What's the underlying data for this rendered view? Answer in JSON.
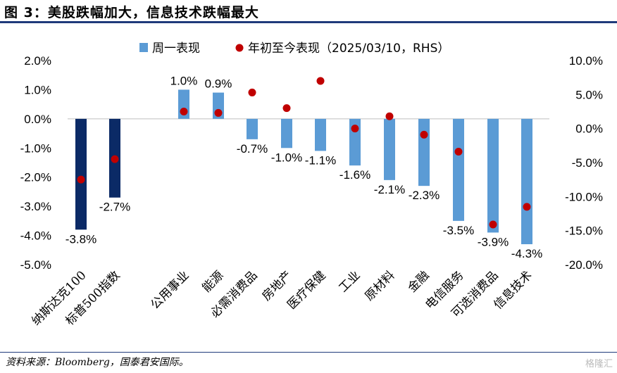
{
  "header": {
    "title": "图 3：美股跌幅加大，信息技术跌幅最大"
  },
  "footer": {
    "source": "资料来源：Bloomberg，国泰君安国际。",
    "watermark": "格隆汇"
  },
  "chart_data": {
    "type": "bar",
    "categories": [
      "纳斯达克100",
      "标普500指数",
      "公用事业",
      "能源",
      "必需消费品",
      "房地产",
      "医疗保健",
      "工业",
      "原材料",
      "金融",
      "电信服务",
      "可选消费品",
      "信息技术"
    ],
    "series": [
      {
        "name": "周一表现",
        "type": "bar",
        "axis": "left",
        "values": [
          -3.8,
          -2.7,
          1.0,
          0.9,
          -0.7,
          -1.0,
          -1.1,
          -1.6,
          -2.1,
          -2.3,
          -3.5,
          -3.9,
          -4.3
        ],
        "labels": [
          "-3.8%",
          "-2.7%",
          "1.0%",
          "0.9%",
          "-0.7%",
          "-1.0%",
          "-1.1%",
          "-1.6%",
          "-2.1%",
          "-2.3%",
          "-3.5%",
          "-3.9%",
          "-4.3%"
        ],
        "colors": [
          "#0b2a66",
          "#0b2a66",
          "#5b9bd5",
          "#5b9bd5",
          "#5b9bd5",
          "#5b9bd5",
          "#5b9bd5",
          "#5b9bd5",
          "#5b9bd5",
          "#5b9bd5",
          "#5b9bd5",
          "#5b9bd5",
          "#5b9bd5"
        ]
      },
      {
        "name": "年初至今表现（2025/03/10，RHS）",
        "type": "scatter",
        "axis": "right",
        "values": [
          -7.5,
          -4.5,
          2.5,
          2.3,
          5.3,
          3.0,
          7.0,
          0.0,
          1.8,
          -0.9,
          -3.4,
          -14.1,
          -11.5
        ],
        "color": "#c00000"
      }
    ],
    "left_axis": {
      "ylim": [
        -5.0,
        2.0
      ],
      "ticks": [
        "2.0%",
        "1.0%",
        "0.0%",
        "-1.0%",
        "-2.0%",
        "-3.0%",
        "-4.0%",
        "-5.0%"
      ]
    },
    "right_axis": {
      "ylim": [
        -20.0,
        10.0
      ],
      "ticks": [
        "10.0%",
        "5.0%",
        "0.0%",
        "-5.0%",
        "-10.0%",
        "-15.0%",
        "-20.0%"
      ]
    },
    "legend": {
      "position": "top",
      "bar_color": "#5b9bd5",
      "dot_color": "#c00000"
    },
    "grid": false
  }
}
